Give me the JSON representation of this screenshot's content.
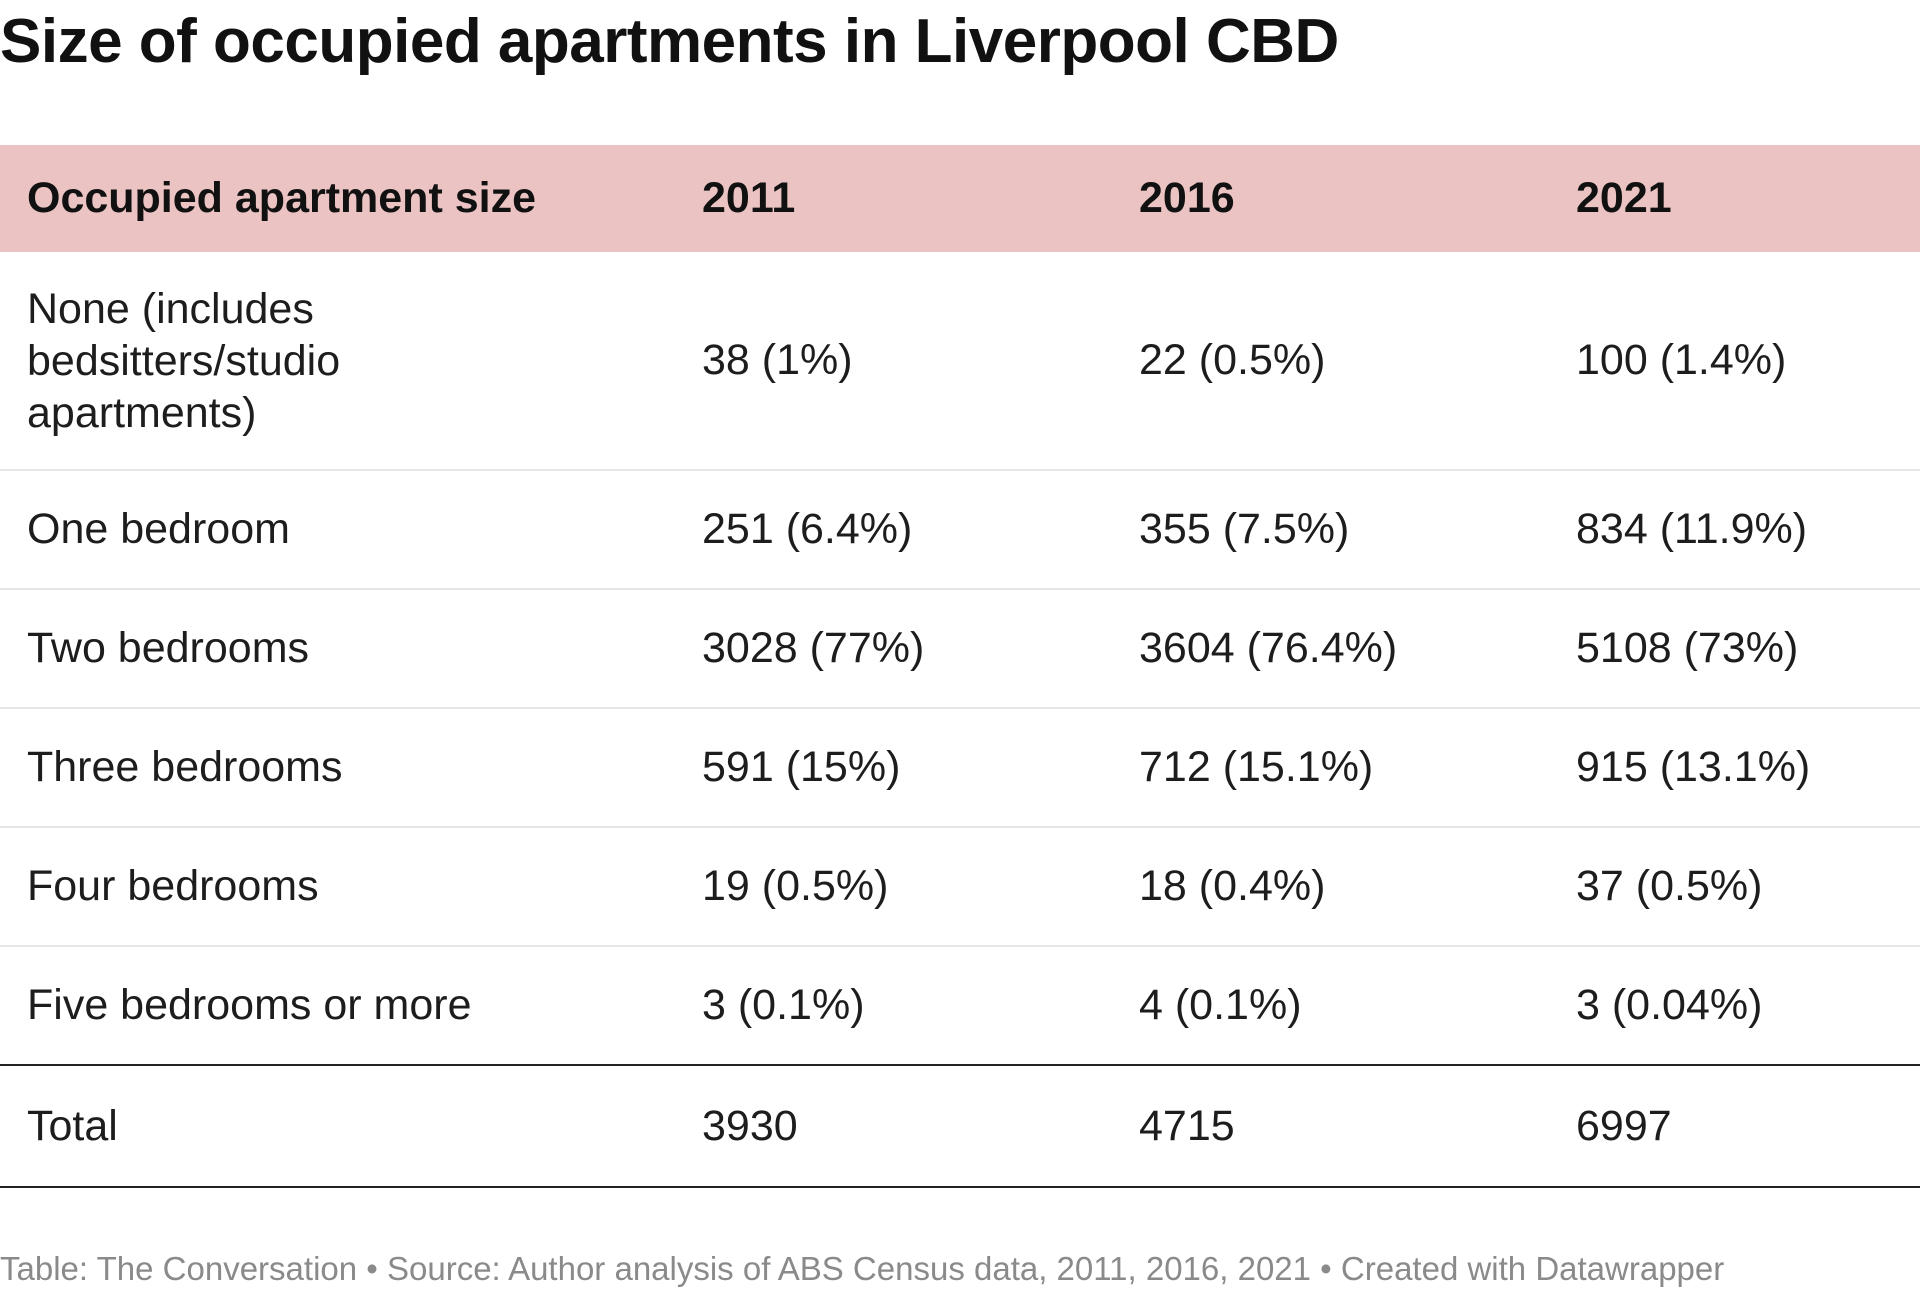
{
  "header": {
    "title": "Size of occupied apartments in Liverpool CBD"
  },
  "table": {
    "columns": [
      "Occupied apartment size",
      "2011",
      "2016",
      "2021"
    ],
    "rows": [
      [
        "None (includes bedsitters/studio apartments)",
        "38 (1%)",
        "22 (0.5%)",
        "100 (1.4%)"
      ],
      [
        "One bedroom",
        "251 (6.4%)",
        "355 (7.5%)",
        "834 (11.9%)"
      ],
      [
        "Two bedrooms",
        "3028 (77%)",
        "3604 (76.4%)",
        "5108 (73%)"
      ],
      [
        "Three bedrooms",
        "591 (15%)",
        "712 (15.1%)",
        "915 (13.1%)"
      ],
      [
        "Four bedrooms",
        "19 (0.5%)",
        "18 (0.4%)",
        "37 (0.5%)"
      ],
      [
        "Five bedrooms or more",
        "3 (0.1%)",
        "4 (0.1%)",
        "3 (0.04%)"
      ]
    ],
    "total": [
      "Total",
      "3930",
      "4715",
      "6997"
    ]
  },
  "footer": {
    "text": "Table: The Conversation • Source: Author analysis of ABS Census data, 2011, 2016, 2021 • Created with Datawrapper"
  }
}
